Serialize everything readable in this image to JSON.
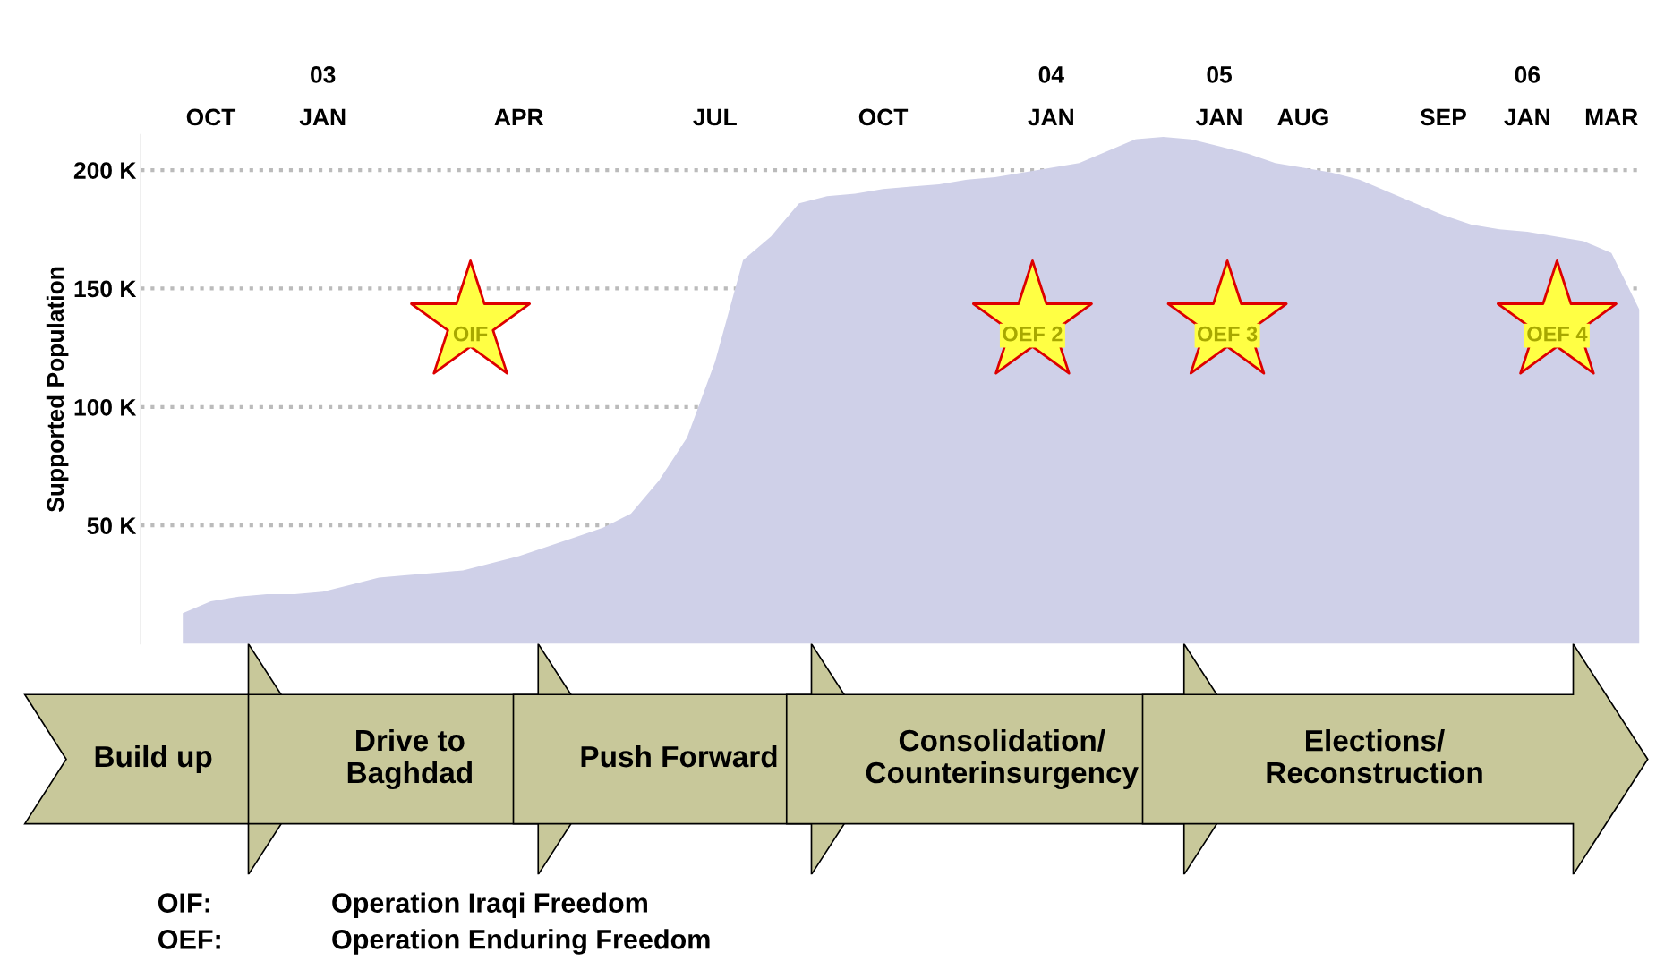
{
  "chart_data": {
    "type": "area",
    "ylabel": "Supported Population",
    "categories": [
      null,
      "OCT",
      null,
      null,
      null,
      "03\nJAN",
      null,
      null,
      null,
      null,
      null,
      null,
      "APR",
      null,
      null,
      null,
      null,
      null,
      null,
      "JUL",
      null,
      null,
      null,
      null,
      null,
      "OCT",
      null,
      null,
      null,
      null,
      null,
      "04\nJAN",
      null,
      null,
      null,
      null,
      null,
      "05\nJAN",
      null,
      null,
      "AUG",
      null,
      null,
      null,
      null,
      "SEP",
      null,
      null,
      "06\nJAN",
      null,
      null,
      "MAR",
      null
    ],
    "series": [
      {
        "color": "#cfd0e8",
        "values": [
          13,
          18,
          20,
          21,
          21,
          22,
          25,
          28,
          29,
          30,
          31,
          34,
          37,
          41,
          45,
          49,
          55,
          69,
          87,
          119,
          162,
          172,
          186,
          189,
          190,
          192,
          193,
          194,
          196,
          197,
          199,
          201,
          203,
          208,
          213,
          214,
          213,
          210,
          207,
          203,
          201,
          199,
          196,
          191,
          186,
          181,
          177,
          175,
          174,
          172,
          170,
          165,
          141
        ]
      }
    ],
    "ylim": [
      0,
      215
    ],
    "yticks": [
      {
        "value": 50,
        "label": "50 K"
      },
      {
        "value": 100,
        "label": "100 K"
      },
      {
        "value": 150,
        "label": "150 K"
      },
      {
        "value": 200,
        "label": "200 K"
      }
    ],
    "grid": "y",
    "annotations": [
      "OIF",
      "OEF 2",
      "OEF 3",
      "OEF 4",
      "Build up",
      "Drive to\nBaghdad",
      "Push Forward",
      "Consolidation/\nCounterinsurgency",
      "Elections/\nReconstruction",
      "OIF:",
      "Operation Iraqi Freedom",
      "OEF:",
      "Operation Enduring Freedom"
    ]
  }
}
